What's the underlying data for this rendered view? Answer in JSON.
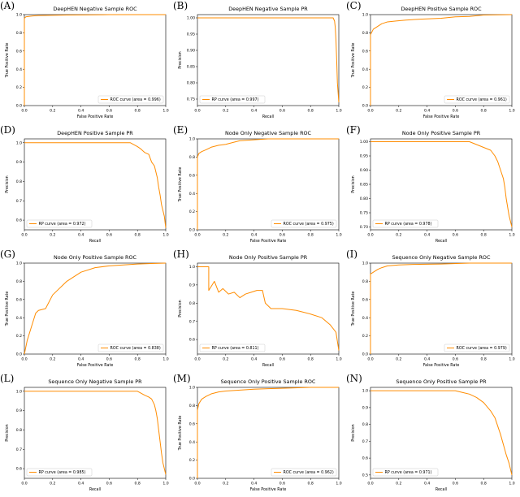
{
  "colors": {
    "curve": "#ff8c00",
    "axis": "#000000",
    "background": "#ffffff"
  },
  "panels_grid": {
    "columns": 3,
    "rows": 4
  },
  "chart_data": [
    {
      "panel_label": "(A)",
      "type": "line",
      "title": "DeepHEN Negative Sample ROC",
      "xlabel": "False Positive Rate",
      "ylabel": "True Positive Rate",
      "xlim": [
        0.0,
        1.0
      ],
      "ylim": [
        0.0,
        1.0
      ],
      "xticks": [
        "0.0",
        "0.2",
        "0.4",
        "0.6",
        "0.8",
        "1.0"
      ],
      "yticks": [
        "0.0",
        "0.2",
        "0.4",
        "0.6",
        "0.8",
        "1.0"
      ],
      "legend_position": "bottom-right",
      "grid": false,
      "series": [
        {
          "name": "ROC curve (area = 0.996)",
          "x": [
            0.0,
            0.0,
            0.01,
            0.03,
            0.06,
            0.1,
            0.3,
            0.6,
            1.0
          ],
          "y": [
            0.0,
            0.96,
            0.975,
            0.98,
            0.985,
            0.99,
            0.995,
            1.0,
            1.0
          ]
        }
      ]
    },
    {
      "panel_label": "(B)",
      "type": "line",
      "title": "DeepHEN Negative Sample PR",
      "xlabel": "Recall",
      "ylabel": "Precision",
      "xlim": [
        0.0,
        1.0
      ],
      "ylim": [
        0.73,
        1.01
      ],
      "xticks": [
        "0.0",
        "0.2",
        "0.4",
        "0.6",
        "0.8",
        "1.0"
      ],
      "yticks": [
        "0.75",
        "0.80",
        "0.85",
        "0.90",
        "0.95",
        "1.00"
      ],
      "legend_position": "bottom-left",
      "grid": false,
      "series": [
        {
          "name": "RP curve (area = 0.997)",
          "x": [
            0.0,
            0.9,
            0.96,
            0.97,
            0.975,
            0.98,
            0.985,
            0.99,
            0.995,
            1.0
          ],
          "y": [
            1.0,
            1.0,
            1.0,
            0.99,
            0.97,
            0.93,
            0.87,
            0.8,
            0.77,
            0.74
          ]
        }
      ]
    },
    {
      "panel_label": "(C)",
      "type": "line",
      "title": "DeepHEN Positive Sample ROC",
      "xlabel": "False Positive Rate",
      "ylabel": "True Positive Rate",
      "xlim": [
        0.0,
        1.0
      ],
      "ylim": [
        0.0,
        1.0
      ],
      "xticks": [
        "0.0",
        "0.2",
        "0.4",
        "0.6",
        "0.8",
        "1.0"
      ],
      "yticks": [
        "0.0",
        "0.2",
        "0.4",
        "0.6",
        "0.8",
        "1.0"
      ],
      "legend_position": "bottom-right",
      "grid": false,
      "series": [
        {
          "name": "ROC curve (area = 0.961)",
          "x": [
            0.0,
            0.0,
            0.02,
            0.04,
            0.06,
            0.08,
            0.12,
            0.18,
            0.25,
            0.35,
            0.5,
            0.6,
            0.7,
            0.8,
            1.0
          ],
          "y": [
            0.0,
            0.78,
            0.84,
            0.86,
            0.88,
            0.9,
            0.92,
            0.93,
            0.94,
            0.95,
            0.96,
            0.975,
            0.98,
            0.995,
            1.0
          ]
        }
      ]
    },
    {
      "panel_label": "(D)",
      "type": "line",
      "title": "DeepHEN Positive Sample PR",
      "xlabel": "Recall",
      "ylabel": "Precision",
      "xlim": [
        0.0,
        1.0
      ],
      "ylim": [
        0.55,
        1.02
      ],
      "xticks": [
        "0.0",
        "0.2",
        "0.4",
        "0.6",
        "0.8",
        "1.0"
      ],
      "yticks": [
        "0.6",
        "0.7",
        "0.8",
        "0.9",
        "1.0"
      ],
      "legend_position": "bottom-left",
      "grid": false,
      "series": [
        {
          "name": "RP curve (area = 0.972)",
          "x": [
            0.0,
            0.75,
            0.8,
            0.82,
            0.85,
            0.88,
            0.9,
            0.92,
            0.94,
            0.95,
            0.96,
            0.97,
            0.98,
            0.99,
            1.0
          ],
          "y": [
            1.0,
            1.0,
            0.98,
            0.97,
            0.95,
            0.94,
            0.9,
            0.88,
            0.82,
            0.77,
            0.73,
            0.68,
            0.65,
            0.62,
            0.56
          ]
        }
      ]
    },
    {
      "panel_label": "(E)",
      "type": "line",
      "title": "Node Only Negative Sample ROC",
      "xlabel": "False Positive Rate",
      "ylabel": "True Positive Rate",
      "xlim": [
        0.0,
        1.0
      ],
      "ylim": [
        0.0,
        1.0
      ],
      "xticks": [
        "0.0",
        "0.2",
        "0.4",
        "0.6",
        "0.8",
        "1.0"
      ],
      "yticks": [
        "0.0",
        "0.2",
        "0.4",
        "0.6",
        "0.8",
        "1.0"
      ],
      "legend_position": "bottom-right",
      "grid": false,
      "series": [
        {
          "name": "ROC curve (area = 0.975)",
          "x": [
            0.0,
            0.0,
            0.01,
            0.03,
            0.06,
            0.1,
            0.15,
            0.2,
            0.25,
            0.3,
            0.4,
            0.5,
            0.6,
            1.0
          ],
          "y": [
            0.0,
            0.8,
            0.84,
            0.86,
            0.88,
            0.91,
            0.93,
            0.94,
            0.96,
            0.98,
            0.99,
            1.0,
            1.0,
            1.0
          ]
        }
      ]
    },
    {
      "panel_label": "(F)",
      "type": "line",
      "title": "Node Only Positive Sample PR",
      "xlabel": "Recall",
      "ylabel": "Precision",
      "xlim": [
        0.0,
        1.0
      ],
      "ylim": [
        0.69,
        1.01
      ],
      "xticks": [
        "0.0",
        "0.2",
        "0.4",
        "0.6",
        "0.8",
        "1.0"
      ],
      "yticks": [
        "0.70",
        "0.75",
        "0.80",
        "0.85",
        "0.90",
        "0.95",
        "1.00"
      ],
      "legend_position": "bottom-left",
      "grid": false,
      "series": [
        {
          "name": "RP curve (area = 0.978)",
          "x": [
            0.0,
            0.7,
            0.75,
            0.8,
            0.85,
            0.88,
            0.9,
            0.92,
            0.94,
            0.95,
            0.96,
            0.97,
            0.98,
            1.0
          ],
          "y": [
            1.0,
            1.0,
            0.99,
            0.98,
            0.97,
            0.95,
            0.93,
            0.9,
            0.87,
            0.84,
            0.8,
            0.77,
            0.74,
            0.7
          ]
        }
      ]
    },
    {
      "panel_label": "(G)",
      "type": "line",
      "title": "Node Only Positive Sample ROC",
      "xlabel": "False Positive Rate",
      "ylabel": "True Positive Rate",
      "xlim": [
        0.0,
        1.0
      ],
      "ylim": [
        0.0,
        1.0
      ],
      "xticks": [
        "0.0",
        "0.2",
        "0.4",
        "0.6",
        "0.8",
        "1.0"
      ],
      "yticks": [
        "0.0",
        "0.2",
        "0.4",
        "0.6",
        "0.8",
        "1.0"
      ],
      "legend_position": "bottom-right",
      "grid": false,
      "series": [
        {
          "name": "ROC curve (area = 0.838)",
          "x": [
            0.0,
            0.02,
            0.05,
            0.08,
            0.1,
            0.15,
            0.2,
            0.3,
            0.4,
            0.5,
            0.6,
            0.7,
            0.8,
            0.9,
            1.0
          ],
          "y": [
            0.0,
            0.15,
            0.3,
            0.45,
            0.48,
            0.5,
            0.65,
            0.8,
            0.9,
            0.95,
            0.97,
            0.98,
            0.99,
            0.995,
            1.0
          ]
        }
      ]
    },
    {
      "panel_label": "(H)",
      "type": "line",
      "title": "Node Only Positive Sample PR",
      "xlabel": "Recall",
      "ylabel": "Precision",
      "xlim": [
        0.0,
        1.0
      ],
      "ylim": [
        0.52,
        1.02
      ],
      "xticks": [
        "0.0",
        "0.2",
        "0.4",
        "0.6",
        "0.8",
        "1.0"
      ],
      "yticks": [
        "0.6",
        "0.7",
        "0.8",
        "0.9",
        "1.0"
      ],
      "legend_position": "bottom-left",
      "grid": false,
      "series": [
        {
          "name": "RP curve (area = 0.811)",
          "x": [
            0.0,
            0.08,
            0.08,
            0.12,
            0.15,
            0.18,
            0.22,
            0.26,
            0.3,
            0.34,
            0.38,
            0.42,
            0.46,
            0.48,
            0.52,
            0.6,
            0.7,
            0.8,
            0.88,
            0.94,
            0.98,
            1.0
          ],
          "y": [
            1.0,
            1.0,
            0.87,
            0.92,
            0.86,
            0.88,
            0.85,
            0.86,
            0.83,
            0.85,
            0.86,
            0.87,
            0.87,
            0.8,
            0.77,
            0.77,
            0.76,
            0.74,
            0.72,
            0.68,
            0.64,
            0.54
          ]
        }
      ]
    },
    {
      "panel_label": "(I)",
      "type": "line",
      "title": "Sequence Only Negative Sample ROC",
      "xlabel": "False Positive Rate",
      "ylabel": "True Positive Rate",
      "xlim": [
        0.0,
        1.0
      ],
      "ylim": [
        0.0,
        1.0
      ],
      "xticks": [
        "0.0",
        "0.2",
        "0.4",
        "0.6",
        "0.8",
        "1.0"
      ],
      "yticks": [
        "0.0",
        "0.2",
        "0.4",
        "0.6",
        "0.8",
        "1.0"
      ],
      "legend_position": "bottom-right",
      "grid": false,
      "series": [
        {
          "name": "ROC curve (area = 0.979)",
          "x": [
            0.0,
            0.0,
            0.02,
            0.05,
            0.08,
            0.12,
            0.2,
            0.3,
            0.5,
            0.7,
            1.0
          ],
          "y": [
            0.0,
            0.88,
            0.9,
            0.93,
            0.95,
            0.97,
            0.98,
            0.985,
            0.99,
            1.0,
            1.0
          ]
        }
      ]
    },
    {
      "panel_label": "(L)",
      "type": "line",
      "title": "Sequence Only Negative Sample PR",
      "xlabel": "Recall",
      "ylabel": "Precision",
      "xlim": [
        0.0,
        1.0
      ],
      "ylim": [
        0.55,
        1.02
      ],
      "xticks": [
        "0.0",
        "0.2",
        "0.4",
        "0.6",
        "0.8",
        "1.0"
      ],
      "yticks": [
        "0.6",
        "0.7",
        "0.8",
        "0.9",
        "1.0"
      ],
      "legend_position": "bottom-left",
      "grid": false,
      "series": [
        {
          "name": "RP curve (area = 0.985)",
          "x": [
            0.0,
            0.8,
            0.85,
            0.88,
            0.9,
            0.92,
            0.93,
            0.94,
            0.95,
            0.96,
            0.97,
            0.98,
            1.0
          ],
          "y": [
            1.0,
            1.0,
            0.98,
            0.97,
            0.96,
            0.93,
            0.9,
            0.86,
            0.8,
            0.74,
            0.68,
            0.63,
            0.57
          ]
        }
      ]
    },
    {
      "panel_label": "(M)",
      "type": "line",
      "title": "Sequence Only Positive Sample ROC",
      "xlabel": "False Positive Rate",
      "ylabel": "True Positive Rate",
      "xlim": [
        0.0,
        1.0
      ],
      "ylim": [
        0.0,
        1.0
      ],
      "xticks": [
        "0.0",
        "0.2",
        "0.4",
        "0.6",
        "0.8",
        "1.0"
      ],
      "yticks": [
        "0.0",
        "0.2",
        "0.4",
        "0.6",
        "0.8",
        "1.0"
      ],
      "legend_position": "bottom-right",
      "grid": false,
      "series": [
        {
          "name": "ROC curve (area = 0.962)",
          "x": [
            0.0,
            0.0,
            0.01,
            0.03,
            0.06,
            0.1,
            0.15,
            0.2,
            0.3,
            0.4,
            0.5,
            0.6,
            0.8,
            1.0
          ],
          "y": [
            0.0,
            0.75,
            0.82,
            0.87,
            0.9,
            0.93,
            0.95,
            0.96,
            0.97,
            0.98,
            0.985,
            0.99,
            1.0,
            1.0
          ]
        }
      ]
    },
    {
      "panel_label": "(N)",
      "type": "line",
      "title": "Sequence Only Positive Sample PR",
      "xlabel": "Recall",
      "ylabel": "Precision",
      "xlim": [
        0.0,
        1.0
      ],
      "ylim": [
        0.48,
        1.02
      ],
      "xticks": [
        "0.0",
        "0.2",
        "0.4",
        "0.6",
        "0.8",
        "1.0"
      ],
      "yticks": [
        "0.5",
        "0.6",
        "0.7",
        "0.8",
        "0.9",
        "1.0"
      ],
      "legend_position": "bottom-left",
      "grid": false,
      "series": [
        {
          "name": "RP curve (area = 0.971)",
          "x": [
            0.0,
            0.6,
            0.65,
            0.7,
            0.75,
            0.8,
            0.85,
            0.88,
            0.9,
            0.92,
            0.94,
            0.96,
            0.98,
            1.0
          ],
          "y": [
            1.0,
            1.0,
            0.99,
            0.98,
            0.96,
            0.93,
            0.88,
            0.84,
            0.79,
            0.74,
            0.68,
            0.62,
            0.57,
            0.5
          ]
        }
      ]
    }
  ]
}
